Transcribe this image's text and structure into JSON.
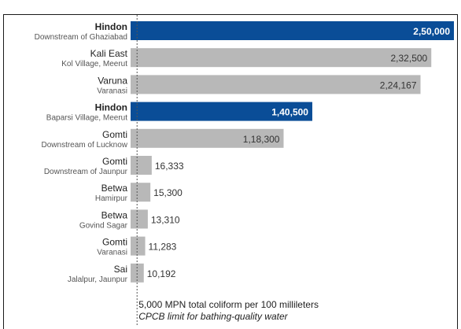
{
  "colors": {
    "highlight": "#0a4d97",
    "normal": "#b8b8b8",
    "value_on_bar_light": "#ffffff",
    "value_on_bar_dark": "#333333",
    "limit_line": "#555555"
  },
  "chart_data": {
    "type": "bar",
    "orientation": "horizontal",
    "title": "",
    "xlabel": "",
    "ylabel": "",
    "grid": false,
    "xlim": [
      0,
      250000
    ],
    "categories": [
      {
        "river": "Hindon",
        "location": "Downstream of Ghaziabad",
        "value": 250000,
        "label": "2,50,000",
        "highlight": true
      },
      {
        "river": "Kali East",
        "location": "Kol Village, Meerut",
        "value": 232500,
        "label": "2,32,500",
        "highlight": false
      },
      {
        "river": "Varuna",
        "location": "Varanasi",
        "value": 224167,
        "label": "2,24,167",
        "highlight": false
      },
      {
        "river": "Hindon",
        "location": "Baparsi Village, Meerut",
        "value": 140500,
        "label": "1,40,500",
        "highlight": true
      },
      {
        "river": "Gomti",
        "location": "Downstream of Lucknow",
        "value": 118300,
        "label": "1,18,300",
        "highlight": false
      },
      {
        "river": "Gomti",
        "location": "Downstream of Jaunpur",
        "value": 16333,
        "label": "16,333",
        "highlight": false
      },
      {
        "river": "Betwa",
        "location": "Hamirpur",
        "value": 15300,
        "label": "15,300",
        "highlight": false
      },
      {
        "river": "Betwa",
        "location": "Govind Sagar",
        "value": 13310,
        "label": "13,310",
        "highlight": false
      },
      {
        "river": "Gomti",
        "location": "Varanasi",
        "value": 11283,
        "label": "11,283",
        "highlight": false
      },
      {
        "river": "Sai",
        "location": "Jalalpur, Jaunpur",
        "value": 10192,
        "label": "10,192",
        "highlight": false
      }
    ],
    "reference_line": {
      "value": 5000,
      "annotation_line1": "5,000 MPN total coliform per 100 millileters",
      "annotation_line2": "CPCB limit for bathing-quality water"
    }
  }
}
